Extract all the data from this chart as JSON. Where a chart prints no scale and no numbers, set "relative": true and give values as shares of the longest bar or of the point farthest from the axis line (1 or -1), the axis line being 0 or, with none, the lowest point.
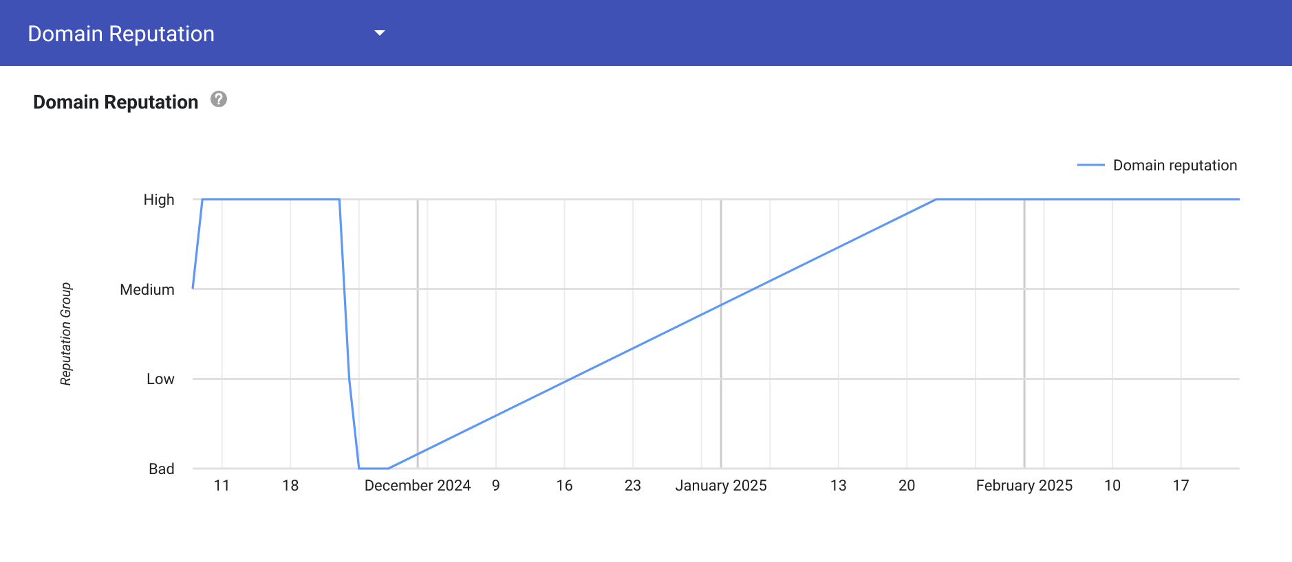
{
  "chart_data": {
    "type": "line",
    "title": "Domain Reputation",
    "annotations": [
      "Domain Reputation",
      "Reputation Group"
    ],
    "x": [
      "2024-11-08",
      "2024-11-09",
      "2024-11-23",
      "2024-11-24",
      "2024-11-25",
      "2024-11-28",
      "2025-01-23",
      "2025-02-23"
    ],
    "series": [
      {
        "name": "Domain reputation",
        "color": "#5e97f6",
        "values": [
          0.667,
          1,
          1,
          0.333,
          0,
          0,
          1,
          1
        ]
      }
    ],
    "relative": true,
    "xlim": [
      "2024-11-08",
      "2025-02-23"
    ],
    "xticks": [
      {
        "value": "2024-11-11",
        "label": "11"
      },
      {
        "value": "2024-11-18",
        "label": "18"
      },
      {
        "value": "2024-11-25",
        "label": null
      },
      {
        "value": "2024-12-01",
        "label": "December 2024"
      },
      {
        "value": "2024-12-02",
        "label": null
      },
      {
        "value": "2024-12-09",
        "label": "9"
      },
      {
        "value": "2024-12-16",
        "label": "16"
      },
      {
        "value": "2024-12-23",
        "label": "23"
      },
      {
        "value": "2024-12-30",
        "label": null
      },
      {
        "value": "2025-01-01",
        "label": "January 2025"
      },
      {
        "value": "2025-01-06",
        "label": null
      },
      {
        "value": "2025-01-13",
        "label": "13"
      },
      {
        "value": "2025-01-20",
        "label": "20"
      },
      {
        "value": "2025-01-27",
        "label": null
      },
      {
        "value": "2025-02-01",
        "label": "February 2025"
      },
      {
        "value": "2025-02-03",
        "label": null
      },
      {
        "value": "2025-02-10",
        "label": "10"
      },
      {
        "value": "2025-02-17",
        "label": "17"
      }
    ],
    "ref_lines": [
      {
        "axis": "y",
        "value": 0,
        "label": "Bad",
        "color": "#e0e0e0"
      },
      {
        "axis": "y",
        "value": 0.333,
        "label": "Low",
        "color": "#e0e0e0"
      },
      {
        "axis": "y",
        "value": 0.667,
        "label": "Medium",
        "color": "#e0e0e0"
      },
      {
        "axis": "y",
        "value": 1,
        "label": "High",
        "color": "#e0e0e0"
      }
    ],
    "grid": "x",
    "legend": "top right",
    "marker": "none",
    "line_style": "solid"
  }
}
